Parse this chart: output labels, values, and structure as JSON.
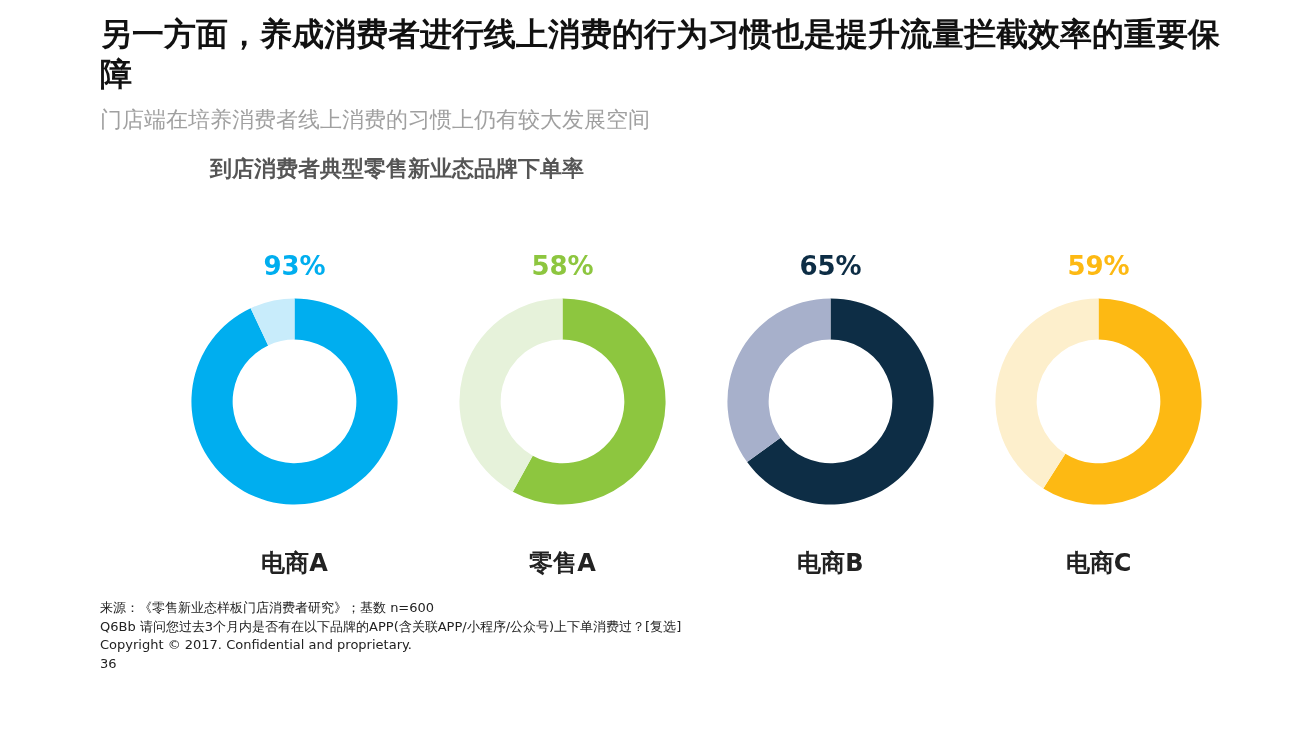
{
  "chart_data": [
    {
      "type": "donut",
      "title": "电商A",
      "categories": [
        null,
        null
      ],
      "values": [
        93,
        7
      ],
      "colors": [
        "#00aeef",
        "#c8ecfb"
      ],
      "value_labels": [
        "93%",
        null
      ],
      "annotations": [
        "另一方面，养成消费者进行线上消费的行为习惯也是提升流量拦截效率的重要保障",
        "门店端在培养消费者线上消费的习惯上仍有较大发展空间",
        "到店消费者典型零售新业态品牌下单率",
        "来源：《零售新业态样板门店消费者研究》；基数 n=600",
        "Q6Bb  请问您过去3个月内是否有在以下品牌的APP(含关联APP/小程序/公众号)上下单消费过？[复选]",
        "Copyright © 2017. Confidential and proprietary.",
        "36"
      ]
    },
    {
      "type": "donut",
      "title": "零售A",
      "categories": [
        null,
        null
      ],
      "values": [
        58,
        42
      ],
      "colors": [
        "#8dc63f",
        "#e6f2da"
      ],
      "value_labels": [
        "58%",
        null
      ]
    },
    {
      "type": "donut",
      "title": "电商B",
      "categories": [
        null,
        null
      ],
      "values": [
        65,
        35
      ],
      "colors": [
        "#0d2d45",
        "#a7b0cb"
      ],
      "value_labels": [
        "65%",
        null
      ]
    },
    {
      "type": "donut",
      "title": "电商C",
      "categories": [
        null,
        null
      ],
      "values": [
        59,
        41
      ],
      "colors": [
        "#fdb913",
        "#fdefcc"
      ],
      "value_labels": [
        "59%",
        null
      ]
    }
  ]
}
